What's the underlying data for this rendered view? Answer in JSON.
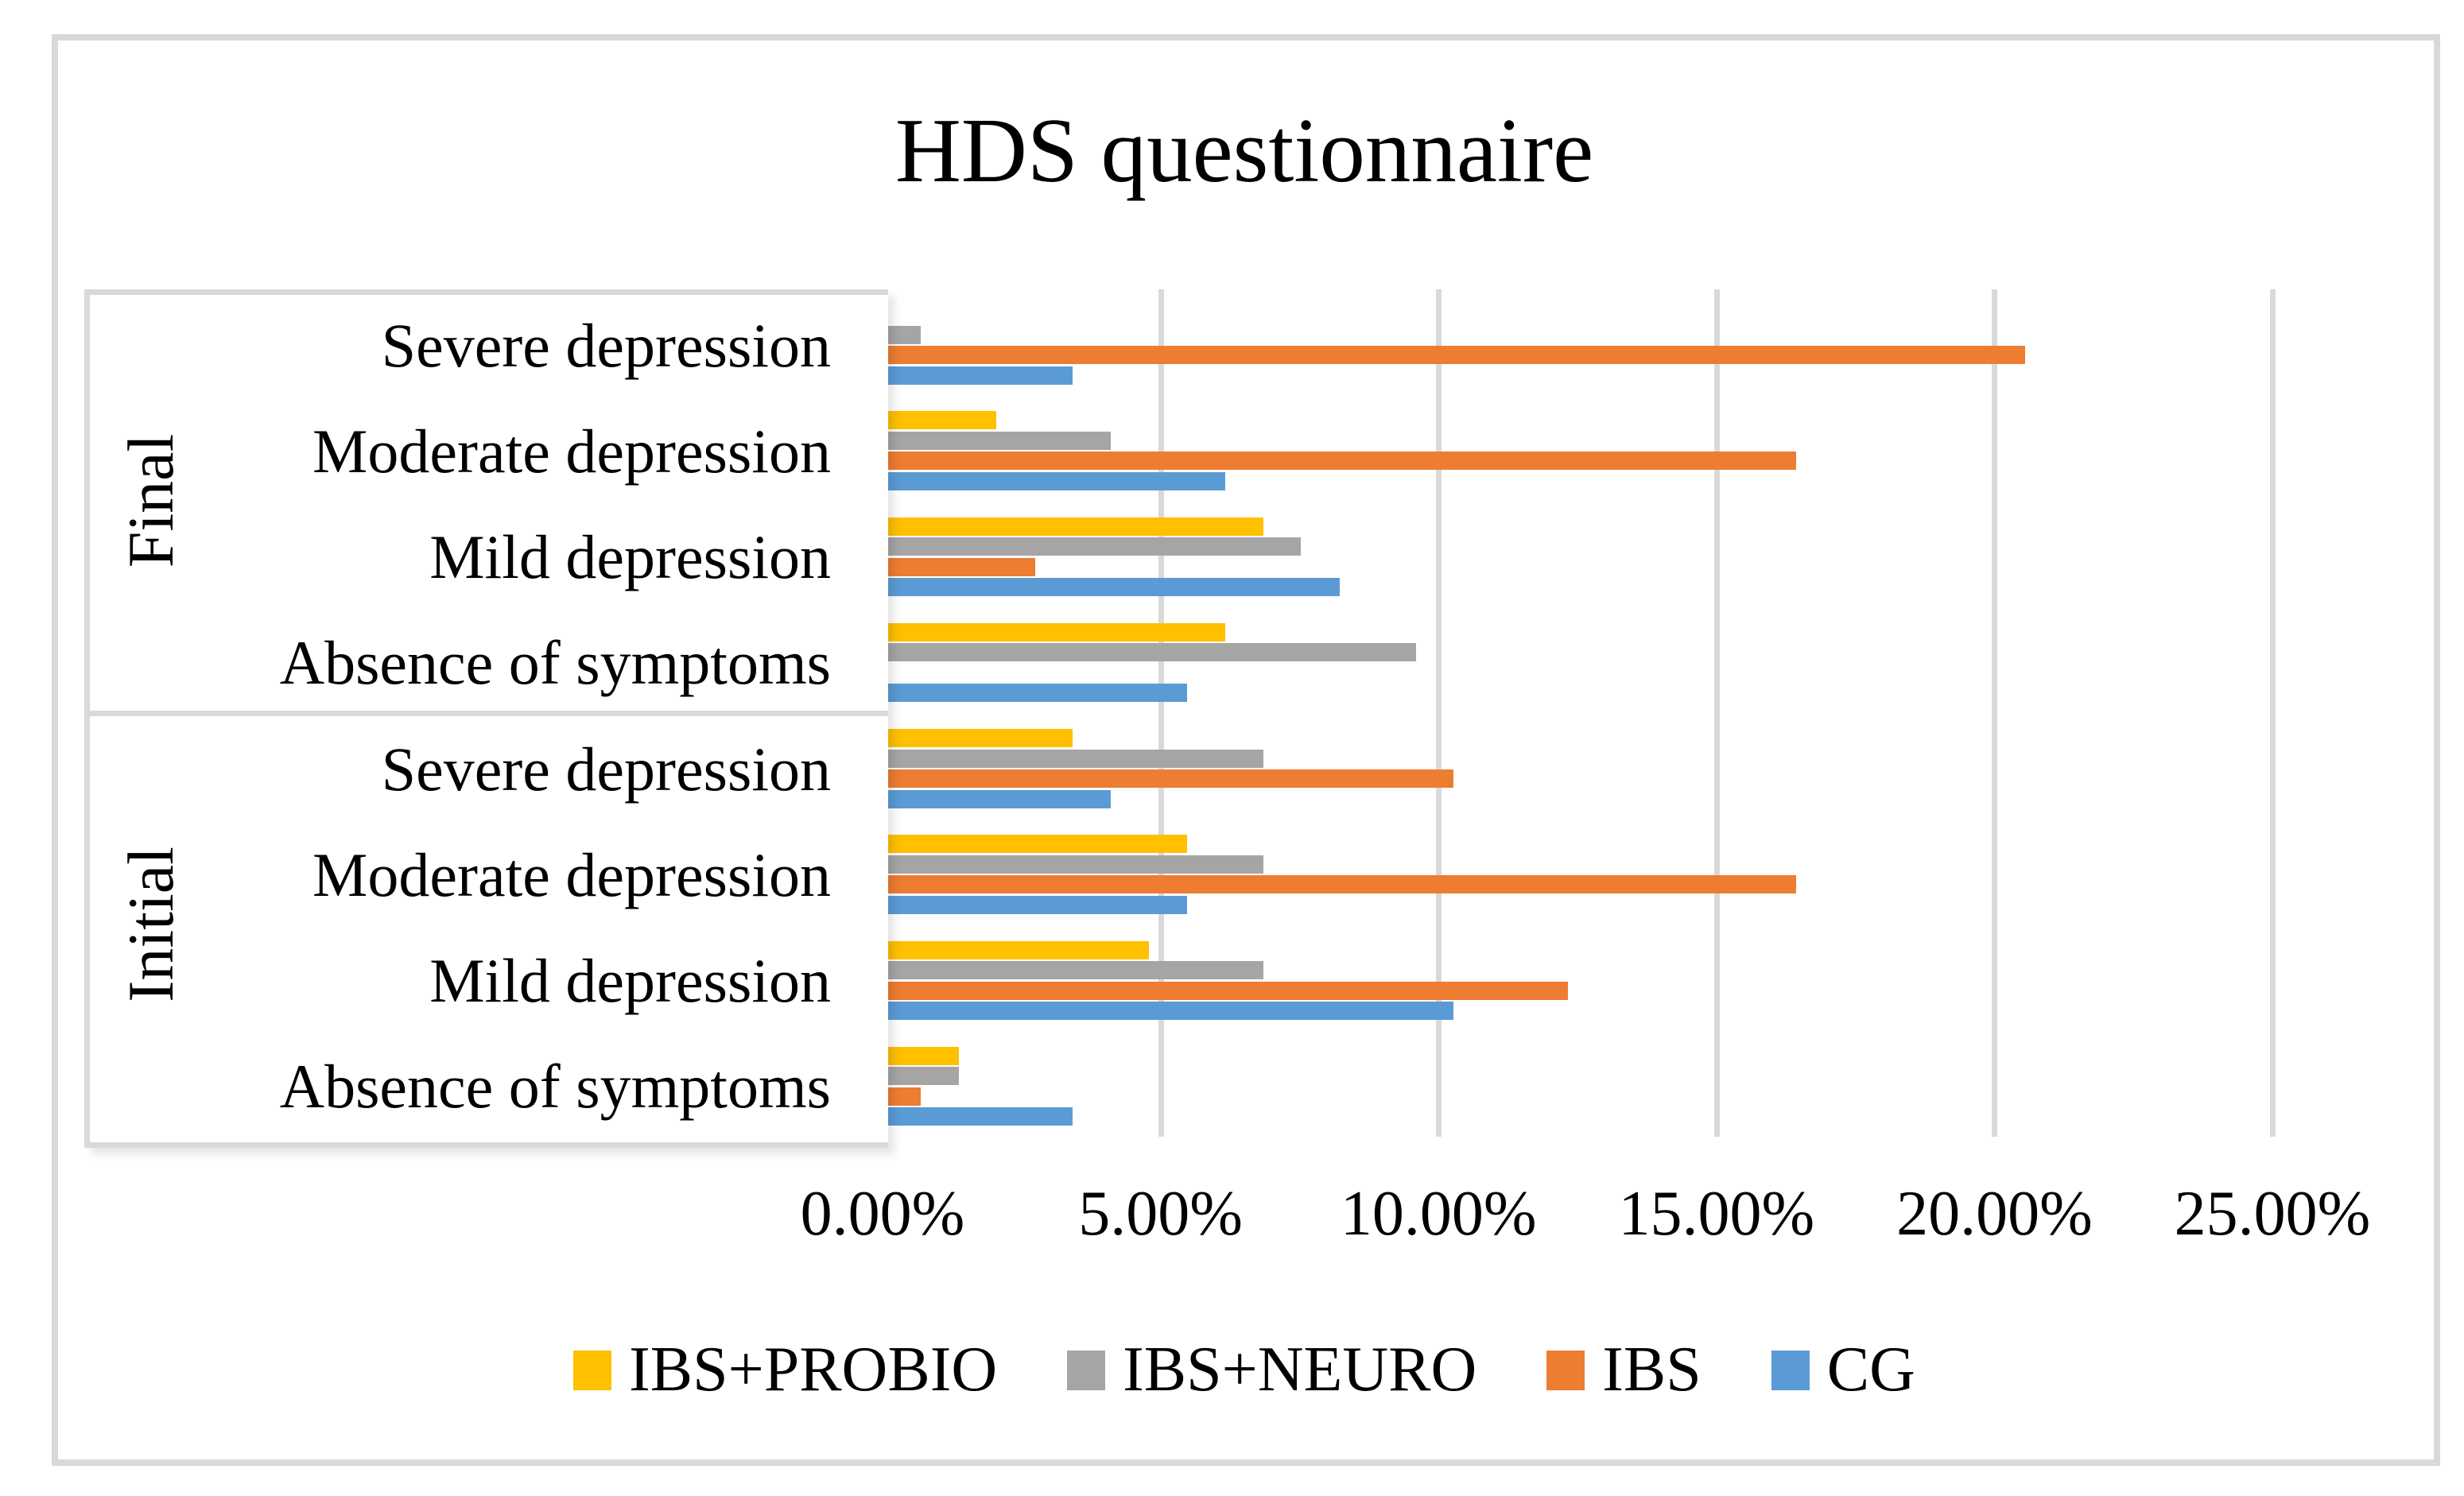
{
  "title": "HDS questionnaire",
  "chart_data": {
    "type": "bar",
    "orientation": "horizontal",
    "title": "HDS questionnaire",
    "groups": [
      "Final",
      "Initial"
    ],
    "categories": [
      {
        "group": "Final",
        "label": "Severe depression"
      },
      {
        "group": "Final",
        "label": "Moderate depression"
      },
      {
        "group": "Final",
        "label": "Mild depression"
      },
      {
        "group": "Final",
        "label": "Absence of symptoms"
      },
      {
        "group": "Initial",
        "label": "Severe depression"
      },
      {
        "group": "Initial",
        "label": "Moderate depression"
      },
      {
        "group": "Initial",
        "label": "Mild depression"
      },
      {
        "group": "Initial",
        "label": "Absence of symptoms"
      }
    ],
    "series": [
      {
        "name": "IBS+PROBIO",
        "color": "#FFC000",
        "values": [
          0,
          2.05,
          6.85,
          6.16,
          3.42,
          5.48,
          4.79,
          1.37
        ]
      },
      {
        "name": "IBS+NEURO",
        "color": "#A5A5A5",
        "values": [
          0.68,
          4.11,
          7.53,
          9.59,
          6.85,
          6.85,
          6.85,
          1.37
        ]
      },
      {
        "name": "IBS",
        "color": "#ED7D31",
        "values": [
          20.55,
          16.44,
          2.74,
          0,
          10.27,
          16.44,
          12.33,
          0.68
        ]
      },
      {
        "name": "CG",
        "color": "#5B9BD5",
        "values": [
          3.42,
          6.16,
          8.22,
          5.48,
          4.11,
          5.48,
          10.27,
          3.42
        ]
      }
    ],
    "x_axis": {
      "min": 0,
      "max": 25,
      "tick_step": 5,
      "tick_labels": [
        "0.00%",
        "5.00%",
        "10.00%",
        "15.00%",
        "20.00%",
        "25.00%"
      ],
      "gridlines": true
    },
    "legend": {
      "position": "bottom",
      "entries": [
        "IBS+PROBIO",
        "IBS+NEURO",
        "IBS",
        "CG"
      ]
    },
    "colors": {
      "grid": "#D9D9D9",
      "text": "#000000",
      "background": "#FFFFFF"
    }
  }
}
